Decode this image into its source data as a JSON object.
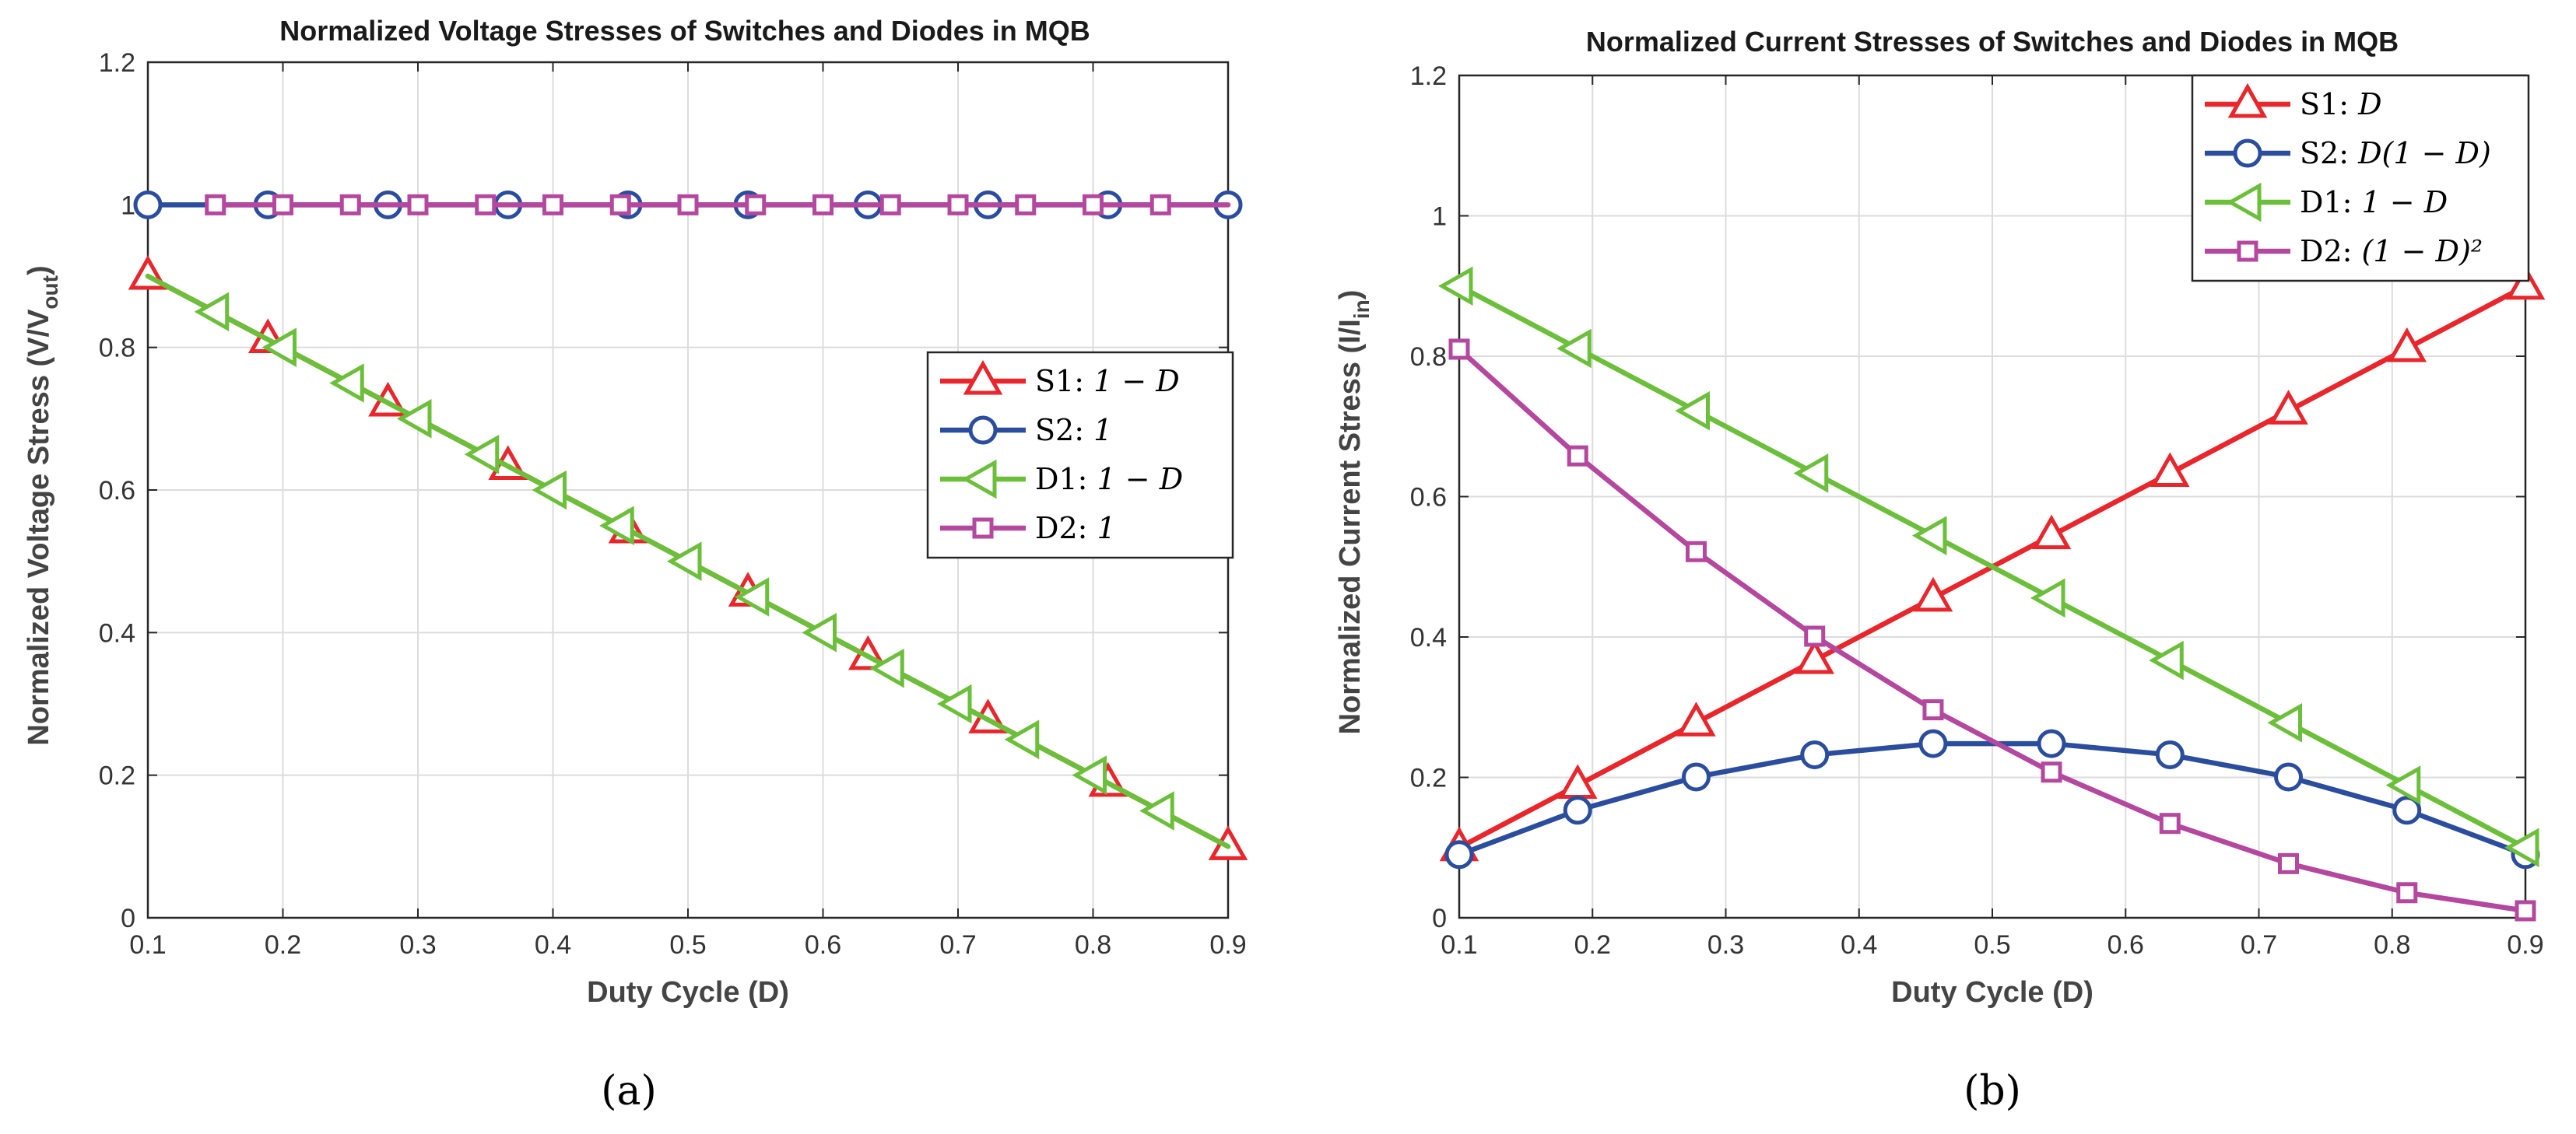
{
  "chart_data": [
    {
      "type": "line",
      "title": "Normalized Voltage Stresses of Switches and Diodes in MQB",
      "xlabel": "Duty Cycle (D)",
      "ylabel": "Normalized Voltage Stress (V/V",
      "ylabel_sub": "out",
      "ylabel_end": ")",
      "xlim": [
        0.1,
        0.9
      ],
      "ylim": [
        0,
        1.2
      ],
      "xticks": [
        "0.1",
        "0.2",
        "0.3",
        "0.4",
        "0.5",
        "0.6",
        "0.7",
        "0.8",
        "0.9"
      ],
      "yticks": [
        "0",
        "0.2",
        "0.4",
        "0.6",
        "0.8",
        "1",
        "1.2"
      ],
      "grid": true,
      "legend_position": "right-middle",
      "caption": "(a)",
      "series": [
        {
          "name": "S1",
          "formula": "1 − D",
          "color": "#e8262b",
          "marker": "triangle-up",
          "x": [
            0.1,
            0.1889,
            0.2778,
            0.3667,
            0.4556,
            0.5444,
            0.6333,
            0.7222,
            0.8111,
            0.9
          ],
          "y": [
            0.9,
            0.8111,
            0.7222,
            0.6333,
            0.5444,
            0.4556,
            0.3667,
            0.2778,
            0.1889,
            0.1
          ]
        },
        {
          "name": "S2",
          "formula": "1",
          "color": "#2a4d9e",
          "marker": "circle",
          "x": [
            0.1,
            0.1889,
            0.2778,
            0.3667,
            0.4556,
            0.5444,
            0.6333,
            0.7222,
            0.8111,
            0.9
          ],
          "y": [
            1,
            1,
            1,
            1,
            1,
            1,
            1,
            1,
            1,
            1
          ]
        },
        {
          "name": "D1",
          "formula": "1 − D",
          "color": "#6bbf3a",
          "marker": "triangle-left",
          "x": [
            0.1,
            0.15,
            0.2,
            0.25,
            0.3,
            0.35,
            0.4,
            0.45,
            0.5,
            0.55,
            0.6,
            0.65,
            0.7,
            0.75,
            0.8,
            0.85,
            0.9
          ],
          "y": [
            0.9,
            0.85,
            0.8,
            0.75,
            0.7,
            0.65,
            0.6,
            0.55,
            0.5,
            0.45,
            0.4,
            0.35,
            0.3,
            0.25,
            0.2,
            0.15,
            0.1
          ],
          "marker_x": [
            0.15,
            0.2,
            0.25,
            0.3,
            0.35,
            0.4,
            0.45,
            0.5,
            0.55,
            0.6,
            0.65,
            0.7,
            0.75,
            0.8,
            0.85
          ],
          "marker_y": [
            0.85,
            0.8,
            0.75,
            0.7,
            0.65,
            0.6,
            0.55,
            0.5,
            0.45,
            0.4,
            0.35,
            0.3,
            0.25,
            0.2,
            0.15
          ]
        },
        {
          "name": "D2",
          "formula": "1",
          "color": "#b4479e",
          "marker": "square",
          "x": [
            0.15,
            0.2,
            0.25,
            0.3,
            0.35,
            0.4,
            0.45,
            0.5,
            0.55,
            0.6,
            0.65,
            0.7,
            0.75,
            0.8,
            0.85,
            0.9
          ],
          "y": [
            1,
            1,
            1,
            1,
            1,
            1,
            1,
            1,
            1,
            1,
            1,
            1,
            1,
            1,
            1,
            1
          ],
          "marker_x": [
            0.15,
            0.2,
            0.25,
            0.3,
            0.35,
            0.4,
            0.45,
            0.5,
            0.55,
            0.6,
            0.65,
            0.7,
            0.75,
            0.8,
            0.85
          ],
          "marker_y": [
            1,
            1,
            1,
            1,
            1,
            1,
            1,
            1,
            1,
            1,
            1,
            1,
            1,
            1,
            1
          ]
        }
      ]
    },
    {
      "type": "line",
      "title": "Normalized Current Stresses of Switches and Diodes in MQB",
      "xlabel": "Duty Cycle (D)",
      "ylabel": "Normalized Current Stress (I/I",
      "ylabel_sub": "in",
      "ylabel_end": ")",
      "xlim": [
        0.1,
        0.9
      ],
      "ylim": [
        0,
        1.2
      ],
      "xticks": [
        "0.1",
        "0.2",
        "0.3",
        "0.4",
        "0.5",
        "0.6",
        "0.7",
        "0.8",
        "0.9"
      ],
      "yticks": [
        "0",
        "0.2",
        "0.4",
        "0.6",
        "0.8",
        "1",
        "1.2"
      ],
      "grid": true,
      "legend_position": "top-right",
      "caption": "(b)",
      "series": [
        {
          "name": "S1",
          "formula": "D",
          "color": "#e8262b",
          "marker": "triangle-up",
          "x": [
            0.1,
            0.1889,
            0.2778,
            0.3667,
            0.4556,
            0.5444,
            0.6333,
            0.7222,
            0.8111,
            0.9
          ],
          "y": [
            0.1,
            0.1889,
            0.2778,
            0.3667,
            0.4556,
            0.5444,
            0.6333,
            0.7222,
            0.8111,
            0.9
          ]
        },
        {
          "name": "S2",
          "formula": "D(1 − D)",
          "color": "#2a4d9e",
          "marker": "circle",
          "x": [
            0.1,
            0.1889,
            0.2778,
            0.3667,
            0.4556,
            0.5444,
            0.6333,
            0.7222,
            0.8111,
            0.9
          ],
          "y": [
            0.09,
            0.1532,
            0.2006,
            0.2322,
            0.2481,
            0.2481,
            0.2322,
            0.2006,
            0.1532,
            0.09
          ]
        },
        {
          "name": "D1",
          "formula": "1 − D",
          "color": "#6bbf3a",
          "marker": "triangle-left",
          "x": [
            0.1,
            0.1889,
            0.2778,
            0.3667,
            0.4556,
            0.5444,
            0.6333,
            0.7222,
            0.8111,
            0.9
          ],
          "y": [
            0.9,
            0.8111,
            0.7222,
            0.6333,
            0.5444,
            0.4556,
            0.3667,
            0.2778,
            0.1889,
            0.1
          ]
        },
        {
          "name": "D2",
          "formula": "(1 − D)²",
          "color": "#b4479e",
          "marker": "square",
          "x": [
            0.1,
            0.1889,
            0.2778,
            0.3667,
            0.4556,
            0.5444,
            0.6333,
            0.7222,
            0.8111,
            0.9
          ],
          "y": [
            0.81,
            0.658,
            0.5216,
            0.4011,
            0.2963,
            0.2075,
            0.1344,
            0.0772,
            0.0357,
            0.01
          ]
        }
      ]
    }
  ]
}
